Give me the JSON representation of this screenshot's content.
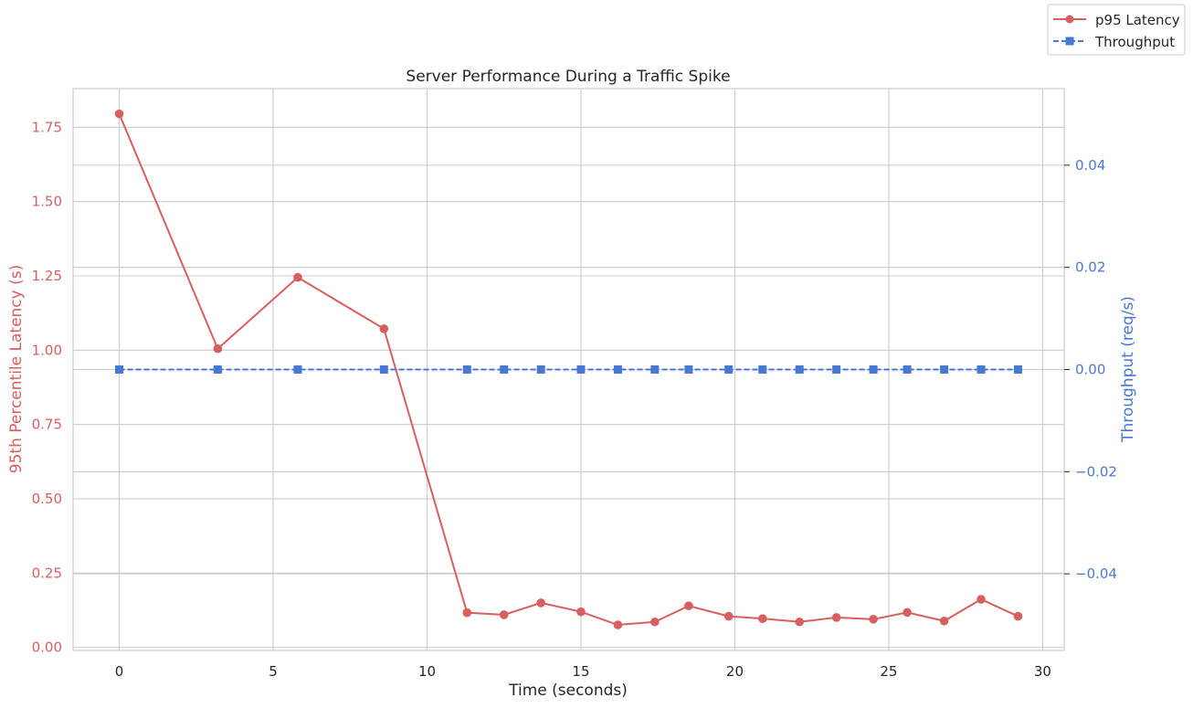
{
  "chart_data": {
    "type": "line",
    "title": "Server Performance During a Traffic Spike",
    "xlabel": "Time (seconds)",
    "ylabel_left": "95th Percentile Latency (s)",
    "ylabel_right": "Throughput (req/s)",
    "xlim": [
      -1.5,
      30.7
    ],
    "ylim_left": [
      -0.01,
      1.88
    ],
    "ylim_right": [
      -0.055,
      0.055
    ],
    "x_ticks": [
      0,
      5,
      10,
      15,
      20,
      25,
      30
    ],
    "x_tick_labels": [
      "0",
      "5",
      "10",
      "15",
      "20",
      "25",
      "30"
    ],
    "y_left_ticks": [
      0,
      0.25,
      0.5,
      0.75,
      1.0,
      1.25,
      1.5,
      1.75
    ],
    "y_left_tick_labels": [
      "0.00",
      "0.25",
      "0.50",
      "0.75",
      "1.00",
      "1.25",
      "1.50",
      "1.75"
    ],
    "y_right_ticks": [
      -0.04,
      -0.02,
      0.0,
      0.02,
      0.04
    ],
    "y_right_tick_labels": [
      "−0.04",
      "−0.02",
      "0.00",
      "0.02",
      "0.04"
    ],
    "grid": true,
    "legend_position": "top-right",
    "series": [
      {
        "name": "p95 Latency",
        "axis": "left",
        "color": "#d65f5f",
        "marker": "circle",
        "line_style": "solid",
        "x": [
          0,
          3.2,
          5.8,
          8.6,
          11.3,
          12.5,
          13.7,
          15.0,
          16.2,
          17.4,
          18.5,
          19.8,
          20.9,
          22.1,
          23.3,
          24.5,
          25.6,
          26.8,
          28.0,
          29.2
        ],
        "y": [
          1.795,
          1.005,
          1.245,
          1.072,
          0.117,
          0.11,
          0.15,
          0.12,
          0.076,
          0.086,
          0.14,
          0.105,
          0.097,
          0.086,
          0.101,
          0.095,
          0.118,
          0.089,
          0.162,
          0.105
        ]
      },
      {
        "name": "Throughput",
        "axis": "right",
        "color": "#4878d0",
        "marker": "square",
        "line_style": "dashed",
        "x": [
          0,
          3.2,
          5.8,
          8.6,
          11.3,
          12.5,
          13.7,
          15.0,
          16.2,
          17.4,
          18.5,
          19.8,
          20.9,
          22.1,
          23.3,
          24.5,
          25.6,
          26.8,
          28.0,
          29.2
        ],
        "y": [
          0,
          0,
          0,
          0,
          0,
          0,
          0,
          0,
          0,
          0,
          0,
          0,
          0,
          0,
          0,
          0,
          0,
          0,
          0,
          0
        ]
      }
    ],
    "colors": {
      "left_axis": "#d65f5f",
      "right_axis": "#4878d0",
      "grid": "#cccccc",
      "text": "#262626"
    }
  }
}
